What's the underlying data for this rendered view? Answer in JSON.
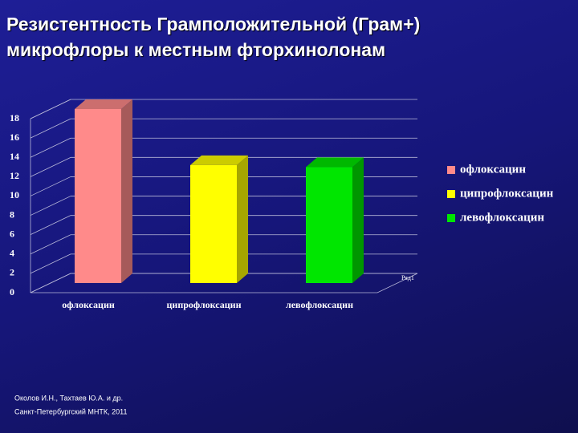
{
  "chart_data": {
    "type": "bar",
    "title": "Резистентность Грамположительной (Грам+) микрофлоры к местным фторхинолонам",
    "categories": [
      "офлоксацин",
      "ципрофлоксацин",
      "левофлоксацин"
    ],
    "series": [
      {
        "name": "Ряд1",
        "values": [
          18,
          12.2,
          12
        ],
        "colors": [
          "#ff8a8a",
          "#ffff00",
          "#00e600"
        ]
      }
    ],
    "ylim": [
      0,
      18
    ],
    "yticks": [
      0,
      2,
      4,
      6,
      8,
      10,
      12,
      14,
      16,
      18
    ],
    "grid": true,
    "notes": [
      "Околов И.Н., Тахтаев Ю.А. и др.",
      "Санкт-Петербургский МНТК, 2011"
    ]
  }
}
